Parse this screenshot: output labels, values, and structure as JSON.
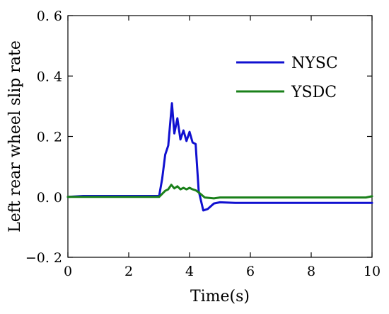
{
  "chart_data": {
    "type": "line",
    "xlabel": "Time(s)",
    "ylabel": "Left rear wheel slip rate",
    "xlim": [
      0,
      10
    ],
    "ylim": [
      -0.2,
      0.6
    ],
    "x_ticks": [
      0,
      2,
      4,
      6,
      8,
      10
    ],
    "x_tick_labels": [
      "0",
      "2",
      "4",
      "6",
      "8",
      "10"
    ],
    "y_ticks": [
      -0.2,
      0.0,
      0.2,
      0.4,
      0.6
    ],
    "y_tick_labels": [
      "−0. 2",
      "0. 0",
      "0. 2",
      "0. 4",
      "0. 6"
    ],
    "grid": false,
    "legend_position": "top-right",
    "series": [
      {
        "name": "NYSC",
        "color": "#1010d0",
        "x": [
          0,
          0.5,
          1.0,
          2.0,
          3.0,
          3.1,
          3.2,
          3.3,
          3.42,
          3.5,
          3.6,
          3.7,
          3.8,
          3.9,
          4.0,
          4.1,
          4.2,
          4.3,
          4.45,
          4.6,
          4.8,
          5.0,
          5.5,
          6.0,
          7.0,
          8.0,
          9.0,
          10.0
        ],
        "y": [
          0.0,
          0.003,
          0.003,
          0.003,
          0.003,
          0.06,
          0.14,
          0.17,
          0.31,
          0.21,
          0.26,
          0.19,
          0.22,
          0.185,
          0.215,
          0.18,
          0.175,
          0.02,
          -0.045,
          -0.04,
          -0.022,
          -0.018,
          -0.02,
          -0.02,
          -0.02,
          -0.02,
          -0.02,
          -0.02
        ]
      },
      {
        "name": "YSDC",
        "color": "#1a801a",
        "x": [
          0,
          1.0,
          2.0,
          3.0,
          3.2,
          3.3,
          3.4,
          3.5,
          3.6,
          3.7,
          3.8,
          3.9,
          4.0,
          4.1,
          4.2,
          4.3,
          4.5,
          4.8,
          5.0,
          6.0,
          7.0,
          8.0,
          9.0,
          9.8,
          10.0
        ],
        "y": [
          0.0,
          0.0,
          0.0,
          0.0,
          0.02,
          0.025,
          0.04,
          0.028,
          0.035,
          0.025,
          0.03,
          0.025,
          0.03,
          0.025,
          0.022,
          0.015,
          -0.002,
          -0.005,
          -0.002,
          -0.002,
          -0.002,
          -0.002,
          -0.002,
          -0.002,
          0.002
        ]
      }
    ]
  }
}
